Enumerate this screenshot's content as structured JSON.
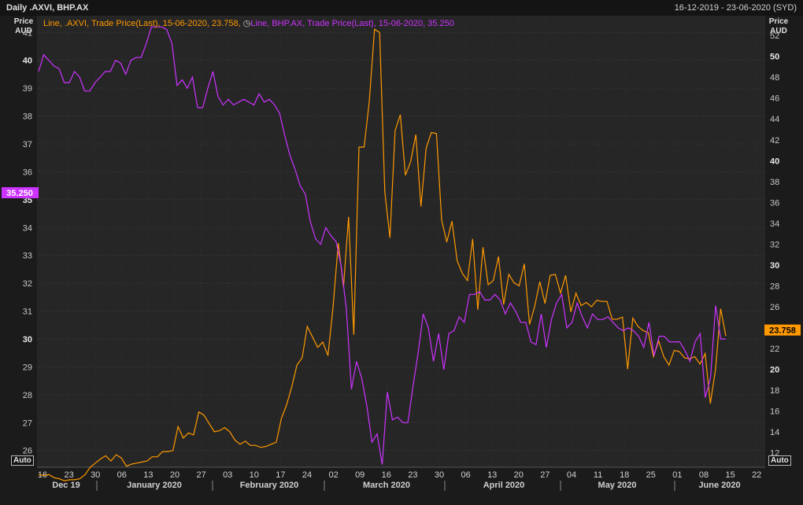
{
  "header": {
    "title": "Daily .AXVI, BHP.AX",
    "date_range": "16-12-2019 - 23-06-2020 (SYD)"
  },
  "axes": {
    "left_label_line1": "Price",
    "left_label_line2": "AUD",
    "right_label_line1": "Price",
    "right_label_line2": "AUD",
    "auto_left": "Auto",
    "auto_right": "Auto"
  },
  "legend": {
    "series1": "Line, .AXVI, Trade Price(Last), 15-06-2020, 23.758,",
    "clock_icon": "clock-icon",
    "series2": "Line, BHP.AX, Trade Price(Last), 15-06-2020, 35.250"
  },
  "badges": {
    "left_value": "35.250",
    "right_value": "23.758"
  },
  "colors": {
    "axvi": "#ff9900",
    "bhp": "#cc33ff",
    "badge_left": "#cc33ff",
    "badge_right": "#ff9900"
  },
  "chart_data": {
    "type": "line",
    "x_tick_labels": [
      "16",
      "23",
      "30",
      "06",
      "13",
      "20",
      "27",
      "03",
      "10",
      "17",
      "24",
      "02",
      "09",
      "16",
      "23",
      "30",
      "06",
      "13",
      "20",
      "27",
      "04",
      "11",
      "18",
      "25",
      "01",
      "08",
      "15",
      "22"
    ],
    "month_labels": [
      "Dec 19",
      "January 2020",
      "February 2020",
      "March 2020",
      "April 2020",
      "May 2020",
      "June 2020"
    ],
    "left_axis": {
      "ylim": [
        25.4,
        41.6
      ],
      "ticks": [
        26,
        27,
        28,
        29,
        30,
        31,
        32,
        33,
        34,
        35,
        36,
        37,
        38,
        39,
        40,
        41
      ]
    },
    "right_axis": {
      "ylim": [
        10.6,
        53.9
      ],
      "ticks": [
        12,
        14,
        16,
        18,
        20,
        22,
        24,
        26,
        28,
        30,
        32,
        34,
        36,
        38,
        40,
        42,
        44,
        46,
        48,
        50,
        52
      ]
    },
    "series": [
      {
        "name": "BHP.AX",
        "axis": "left",
        "values": [
          39.6,
          40.2,
          40.0,
          39.8,
          39.7,
          39.2,
          39.2,
          39.6,
          39.4,
          38.9,
          38.9,
          39.2,
          39.4,
          39.6,
          39.6,
          40.0,
          39.9,
          39.5,
          40.0,
          40.1,
          40.1,
          40.6,
          41.2,
          41.2,
          41.2,
          41.1,
          40.6,
          39.1,
          39.3,
          39.0,
          39.4,
          38.3,
          38.3,
          39.0,
          39.6,
          38.7,
          38.4,
          38.6,
          38.4,
          38.5,
          38.6,
          38.5,
          38.4,
          38.8,
          38.5,
          38.6,
          38.4,
          38.1,
          37.3,
          36.6,
          36.1,
          35.5,
          35.2,
          34.2,
          33.6,
          33.4,
          34.0,
          33.7,
          33.5,
          32.6,
          31.1,
          28.2,
          29.2,
          28.6,
          27.6,
          26.3,
          26.6,
          25.5,
          28.1,
          27.1,
          27.2,
          27.0,
          27.0,
          28.3,
          29.5,
          30.9,
          30.4,
          29.2,
          30.2,
          28.9,
          30.2,
          30.3,
          30.8,
          30.6,
          31.6,
          31.6,
          31.7,
          31.4,
          31.4,
          31.6,
          31.4,
          30.9,
          31.3,
          31.0,
          30.6,
          30.6,
          29.9,
          29.8,
          30.9,
          29.7,
          30.7,
          31.3,
          31.6,
          30.4,
          30.6,
          31.3,
          30.8,
          30.4,
          30.9,
          30.7,
          30.7,
          30.8,
          30.6,
          30.4,
          30.3,
          30.4,
          30.3,
          30.1,
          29.7,
          30.6,
          29.4,
          30.1,
          30.1,
          29.9,
          29.9,
          29.9,
          29.6,
          29.2,
          29.9,
          30.2,
          27.9,
          28.6,
          31.2,
          30.0,
          30.0,
          null,
          null,
          null,
          null
        ],
        "display": "left-mapped"
      },
      {
        "name": "BHP.AX (right scale)",
        "axis": "right",
        "values": []
      }
    ],
    "axvi_right": [
      9.9,
      9.8,
      9.9,
      9.6,
      9.5,
      9.3,
      9.4,
      9.4,
      9.5,
      9.9,
      10.6,
      11.0,
      11.4,
      11.7,
      11.2,
      11.8,
      11.5,
      10.7,
      10.9,
      11.0,
      11.1,
      11.2,
      11.6,
      11.6,
      12.1,
      12.1,
      12.2,
      14.5,
      13.4,
      13.9,
      13.7,
      15.9,
      15.6,
      14.8,
      14.0,
      14.1,
      14.4,
      14.0,
      13.2,
      12.8,
      13.1,
      12.7,
      12.7,
      12.5,
      12.6,
      12.8,
      13.0,
      15.3,
      16.6,
      18.3,
      20.4,
      21.1,
      24.1,
      23.1,
      22.1,
      22.6,
      21.3,
      26.0,
      32.1,
      27.9,
      34.6,
      23.3,
      41.3,
      41.3,
      45.7,
      52.6,
      52.3,
      37.0,
      32.6,
      42.9,
      44.4,
      38.6,
      39.9,
      42.5,
      35.6,
      41.2,
      42.7,
      42.6,
      34.3,
      32.2,
      34.2,
      30.4,
      29.2,
      28.5,
      32.5,
      25.7,
      31.7,
      28.1,
      28.5,
      30.8,
      26.2,
      29.1,
      28.3,
      28.0,
      30.1,
      24.3,
      26.0,
      28.4,
      26.3,
      29.0,
      29.1,
      27.3,
      29.0,
      25.5,
      27.3,
      26.1,
      26.4,
      26.0,
      26.6,
      26.5,
      26.5,
      24.8,
      24.8,
      25.0,
      20.0,
      24.9,
      24.1,
      23.7,
      23.5,
      21.2,
      22.7,
      21.2,
      20.4,
      21.8,
      21.7,
      21.1,
      21.0,
      21.2,
      20.5,
      21.5,
      16.7,
      20.0,
      25.8,
      23.2
    ]
  }
}
